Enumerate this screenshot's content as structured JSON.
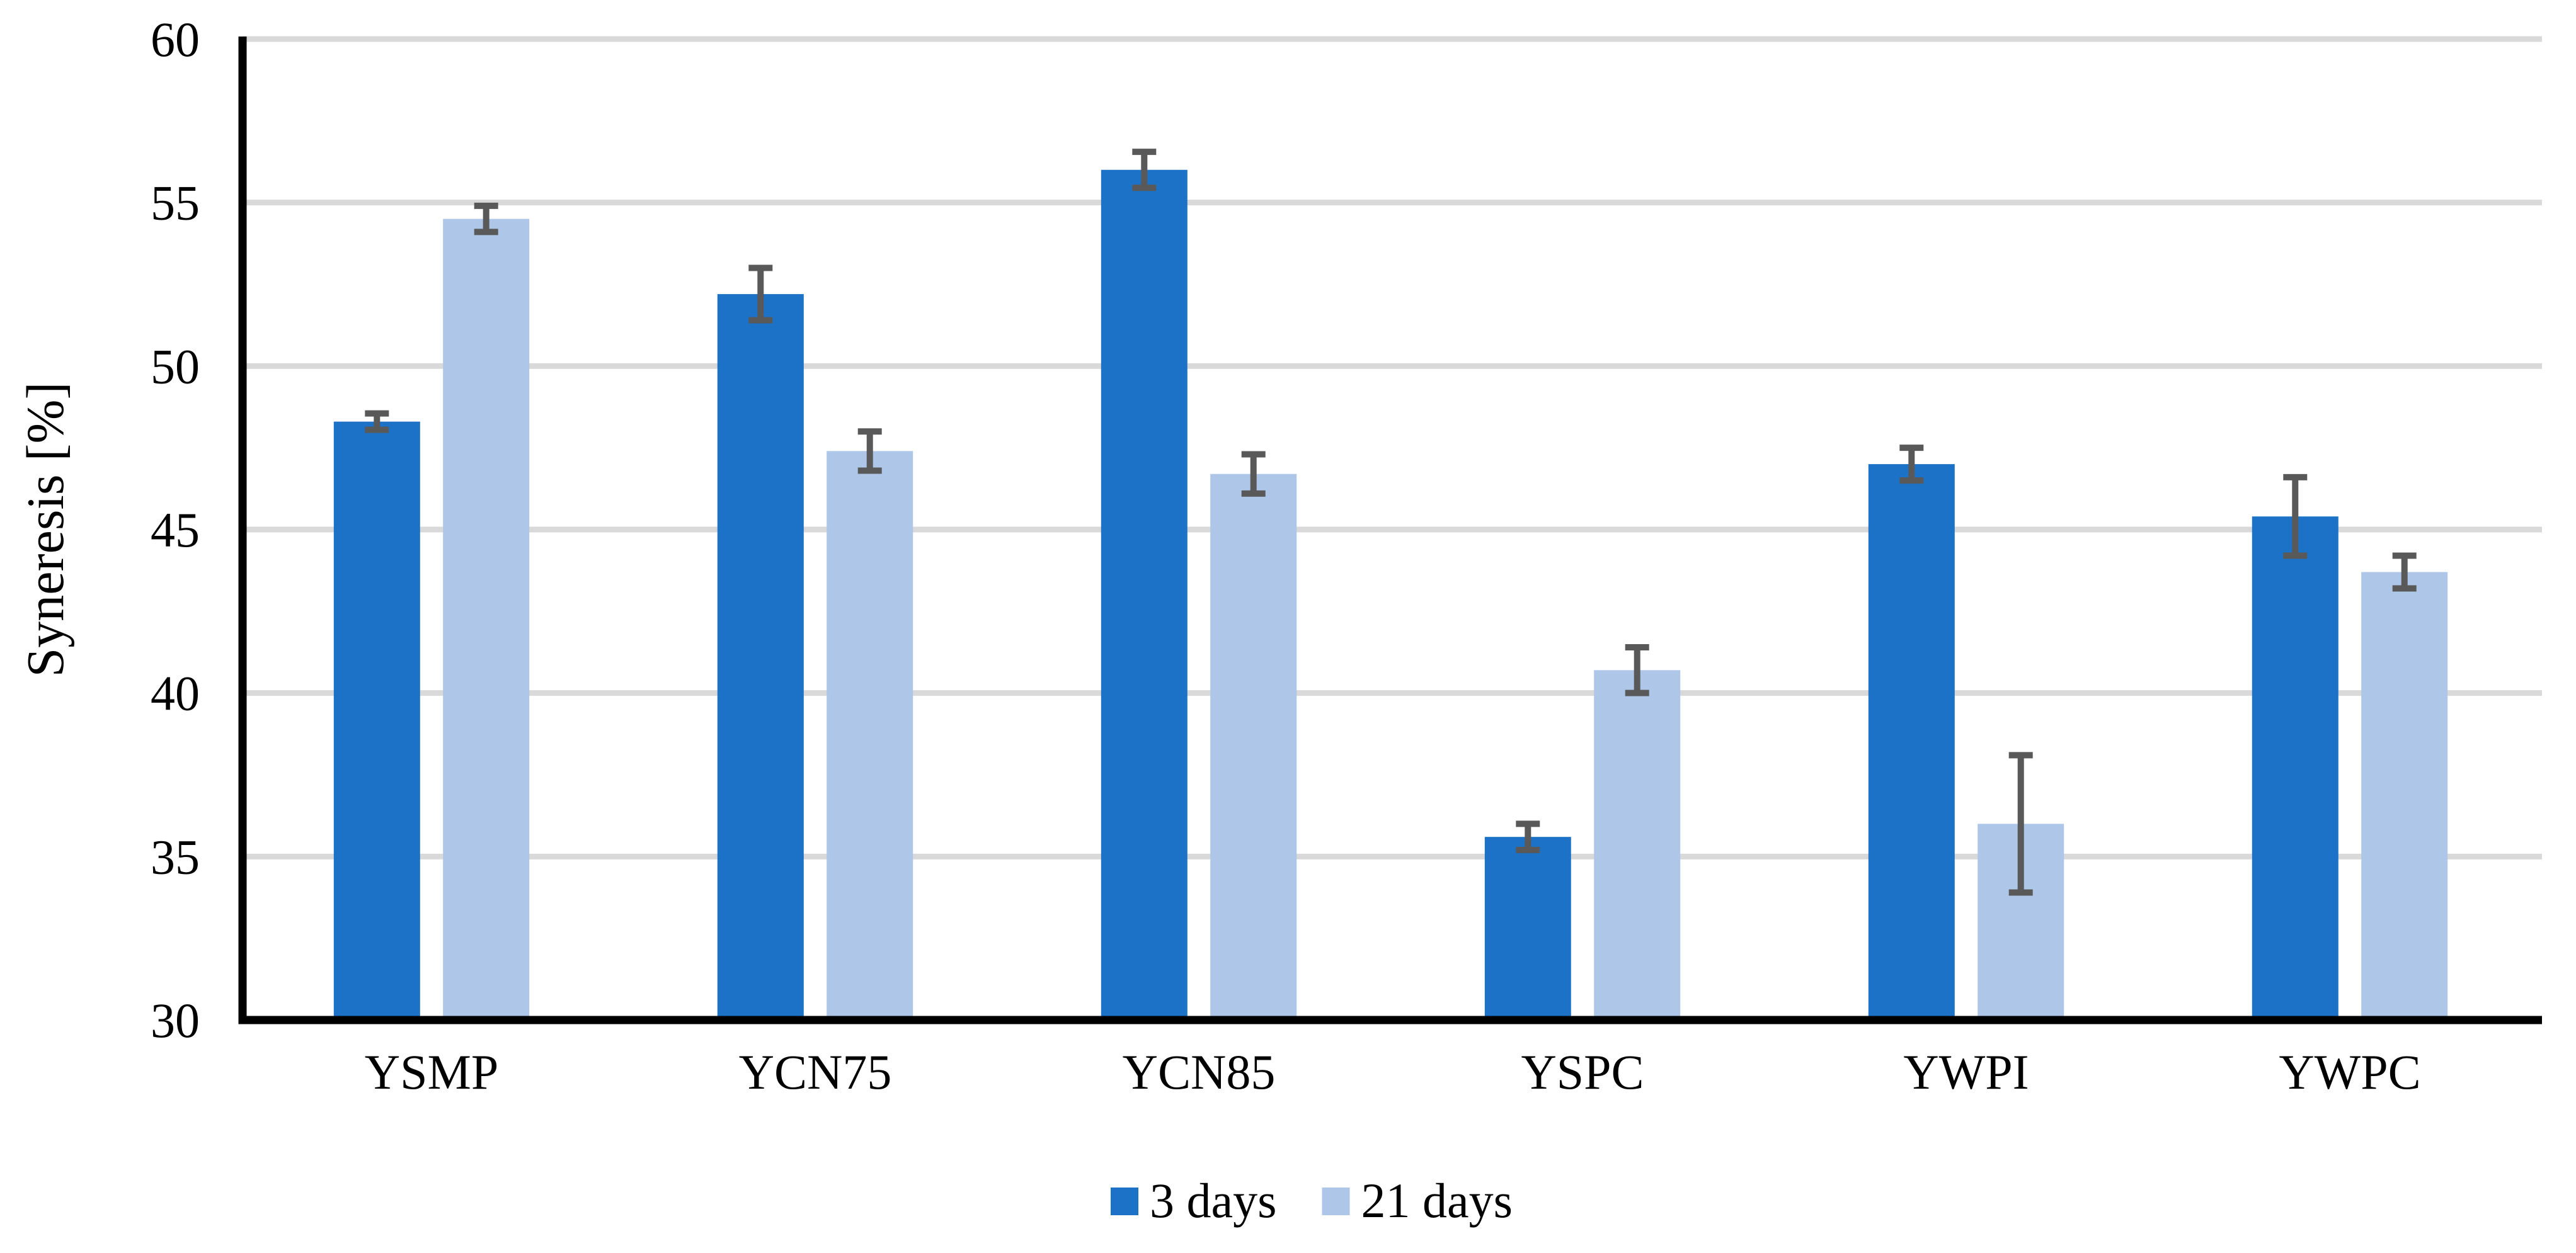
{
  "chart_data": {
    "type": "bar",
    "title": "",
    "xlabel": "",
    "ylabel": "Syneresis [%]",
    "ylim": [
      30,
      60
    ],
    "yticks": [
      30,
      35,
      40,
      45,
      50,
      55,
      60
    ],
    "grid": true,
    "legend_position": "bottom-center",
    "categories": [
      "YSMP",
      "YCN75",
      "YCN85",
      "YSPC",
      "YWPI",
      "YWPC"
    ],
    "series": [
      {
        "name": "3 days",
        "color": "#1B72C6",
        "values": [
          48.3,
          52.2,
          56.0,
          35.6,
          47.0,
          45.4
        ],
        "errors": [
          0.25,
          0.8,
          0.55,
          0.4,
          0.5,
          1.2
        ]
      },
      {
        "name": "21 days",
        "color": "#AEC6E8",
        "values": [
          54.5,
          47.4,
          46.7,
          40.7,
          36.0,
          43.7
        ],
        "errors": [
          0.4,
          0.6,
          0.6,
          0.7,
          2.1,
          0.5
        ]
      }
    ],
    "error_bar_color": "#595959",
    "gridline_color": "#D9D9D9",
    "axis_color": "#000000",
    "background_color": "#FFFFFF"
  }
}
